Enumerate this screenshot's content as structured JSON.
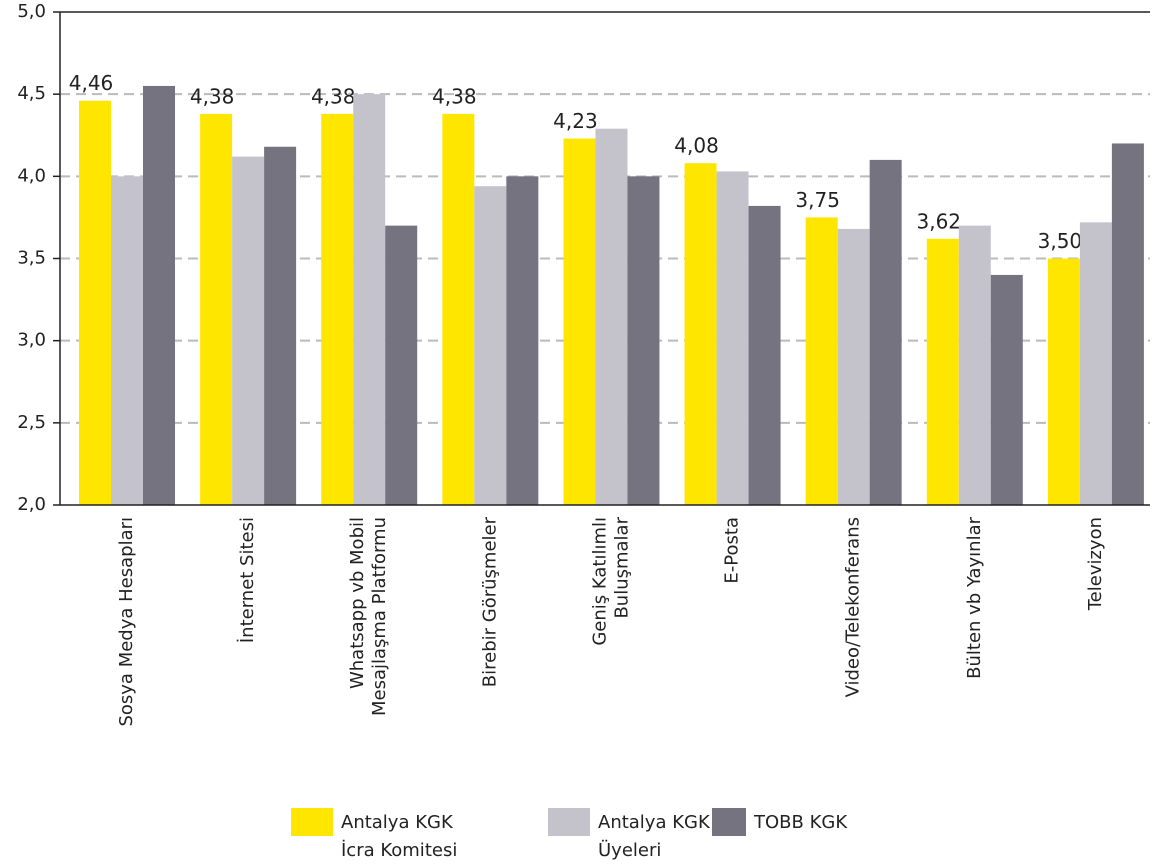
{
  "chart_data": {
    "type": "bar",
    "categories": [
      "Sosya Medya Hesapları",
      "İnternet Sitesi",
      "Whatsapp vb Mobil\nMesajlaşma Platformu",
      "Birebir Görüşmeler",
      "Geniş Katılımlı\nBuluşmalar",
      "E-Posta",
      "Video/Telekonferans",
      "Bülten vb  Yayınlar",
      "Televizyon"
    ],
    "series": [
      {
        "name": "Antalya KGK\nİcra Komitesi",
        "color": "#ffe600",
        "values": [
          4.46,
          4.38,
          4.38,
          4.38,
          4.23,
          4.08,
          3.75,
          3.62,
          3.5
        ],
        "value_labels": [
          "4,46",
          "4,38",
          "4,38",
          "4,38",
          "4,23",
          "4,08",
          "3,75",
          "3,62",
          "3,50"
        ]
      },
      {
        "name": "Antalya KGK\nÜyeleri",
        "color": "#c4c3cc",
        "values": [
          4.0,
          4.12,
          4.5,
          3.94,
          4.29,
          4.03,
          3.68,
          3.7,
          3.72
        ]
      },
      {
        "name": "TOBB KGK",
        "color": "#74737f",
        "values": [
          4.55,
          4.18,
          3.7,
          4.0,
          4.0,
          3.82,
          4.1,
          3.4,
          4.2
        ]
      }
    ],
    "ylim": [
      2.0,
      5.0
    ],
    "yticks": [
      {
        "value": 2.0,
        "label": "2,0"
      },
      {
        "value": 2.5,
        "label": "2,5"
      },
      {
        "value": 3.0,
        "label": "3,0"
      },
      {
        "value": 3.5,
        "label": "3,5"
      },
      {
        "value": 4.0,
        "label": "4,0"
      },
      {
        "value": 4.5,
        "label": "4,5"
      },
      {
        "value": 5.0,
        "label": "5,0"
      }
    ],
    "grid": true
  }
}
